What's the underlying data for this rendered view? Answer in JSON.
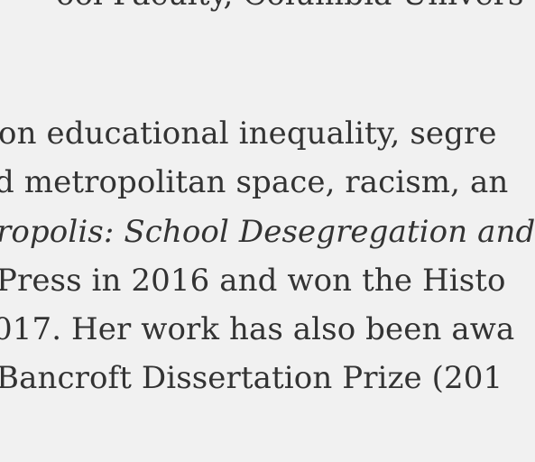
{
  "document": {
    "lines": [
      "ool Faculty, Columbia Univers",
      "on educational inequality, segre",
      "d metropolitan space, racism, an",
      "ropolis: School Desegregation and",
      "Press in 2016 and won the Histo",
      "017. Her work has also been awa",
      "Bancroft Dissertation Prize (201"
    ]
  }
}
